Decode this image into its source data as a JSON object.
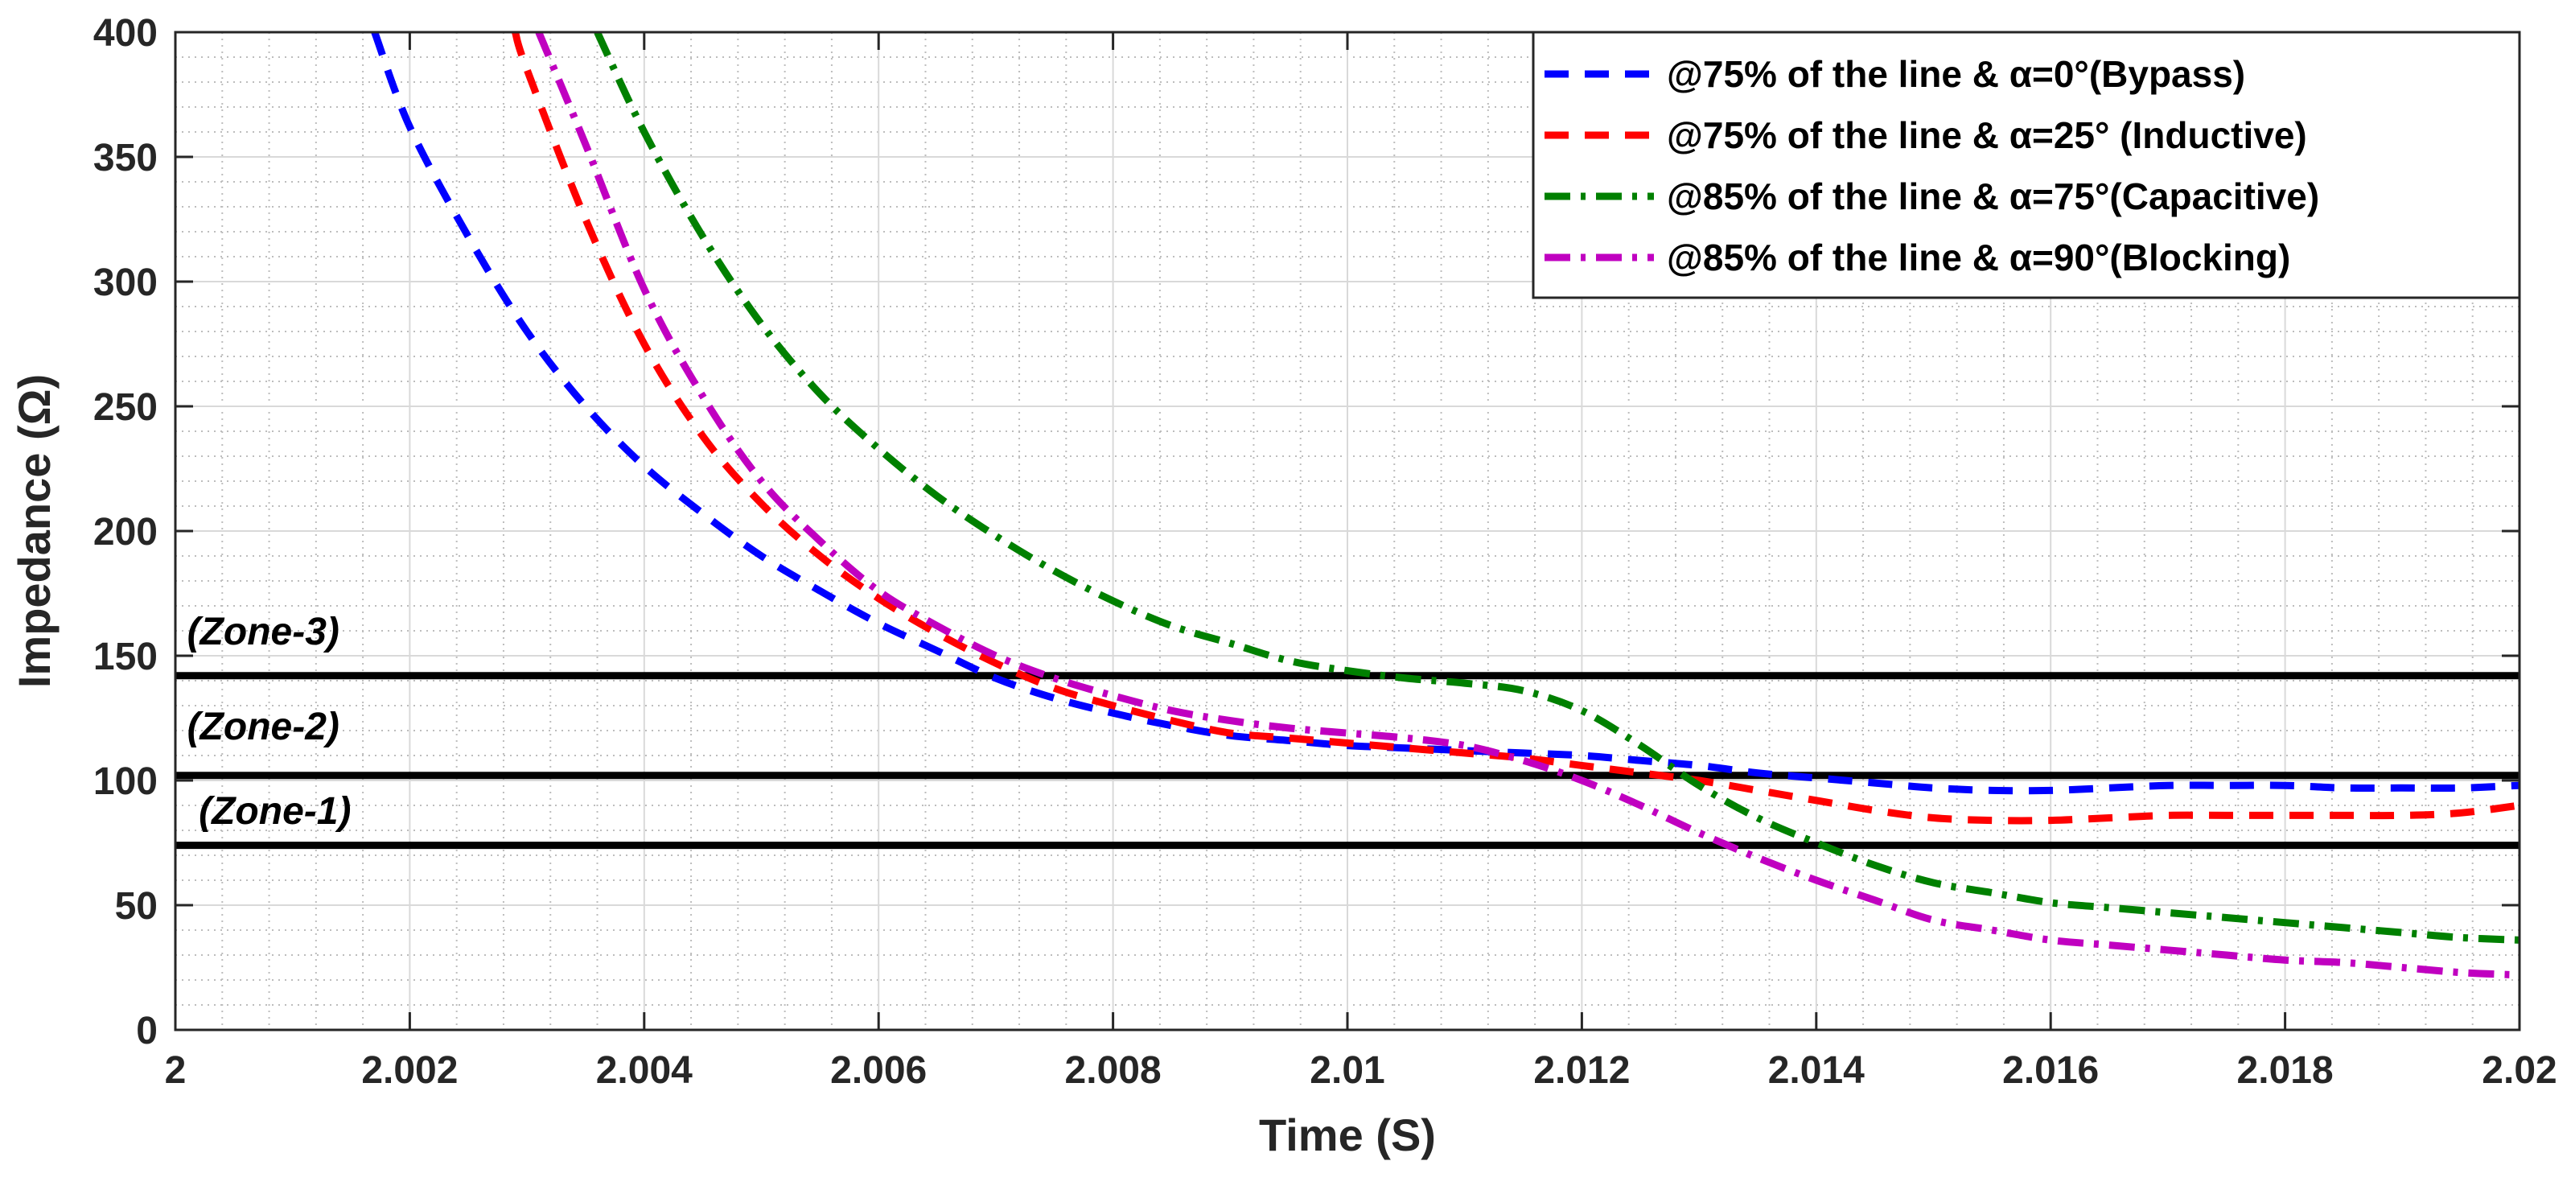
{
  "chart_data": {
    "type": "line",
    "title": "",
    "xlabel": "Time (S)",
    "ylabel": "Impedance (Ω)",
    "xlim": [
      2,
      2.02
    ],
    "ylim": [
      0,
      400
    ],
    "xticks": [
      2,
      2.002,
      2.004,
      2.006,
      2.008,
      2.01,
      2.012,
      2.014,
      2.016,
      2.018,
      2.02
    ],
    "xtick_labels": [
      "2",
      "2.002",
      "2.004",
      "2.006",
      "2.008",
      "2.01",
      "2.012",
      "2.014",
      "2.016",
      "2.018",
      "2.02"
    ],
    "yticks": [
      0,
      50,
      100,
      150,
      200,
      250,
      300,
      350,
      400
    ],
    "ytick_labels": [
      "0",
      "50",
      "100",
      "150",
      "200",
      "250",
      "300",
      "350",
      "400"
    ],
    "grid": true,
    "minor_grid": true,
    "legend_position": "top-right",
    "series": [
      {
        "name": "@75% of the line & α=0°(Bypass)",
        "color": "#0000ff",
        "style": "dashed",
        "x": [
          2.0017,
          2.002,
          2.0025,
          2.003,
          2.0035,
          2.004,
          2.0045,
          2.005,
          2.0055,
          2.006,
          2.0065,
          2.007,
          2.0075,
          2.008,
          2.0085,
          2.009,
          2.0095,
          2.01,
          2.0105,
          2.011,
          2.0115,
          2.012,
          2.0125,
          2.013,
          2.0135,
          2.014,
          2.0145,
          2.015,
          2.0155,
          2.016,
          2.0165,
          2.017,
          2.0175,
          2.018,
          2.0185,
          2.019,
          2.0195,
          2.02
        ],
        "y": [
          400,
          362,
          318,
          280,
          250,
          226,
          207,
          190,
          176,
          163,
          152,
          141,
          133,
          127,
          122,
          118,
          116,
          114,
          113,
          112,
          111,
          110,
          108,
          106,
          103,
          101,
          99,
          97,
          96,
          96,
          97,
          98,
          98,
          98,
          97,
          97,
          97,
          98
        ]
      },
      {
        "name": "@75% of the line & α=25° (Inductive)",
        "color": "#ff0000",
        "style": "dashed",
        "x": [
          2.0029,
          2.003,
          2.0035,
          2.004,
          2.0045,
          2.005,
          2.0055,
          2.006,
          2.0065,
          2.007,
          2.0075,
          2.008,
          2.0085,
          2.009,
          2.0095,
          2.01,
          2.0105,
          2.011,
          2.0115,
          2.012,
          2.0125,
          2.013,
          2.0135,
          2.014,
          2.0145,
          2.015,
          2.0155,
          2.016,
          2.0165,
          2.017,
          2.0175,
          2.018,
          2.0185,
          2.019,
          2.0195,
          2.02
        ],
        "y": [
          400,
          385,
          325,
          275,
          238,
          211,
          190,
          173,
          159,
          147,
          137,
          130,
          124,
          119,
          117,
          115,
          113,
          111,
          109,
          106,
          103,
          100,
          96,
          92,
          88,
          85,
          84,
          84,
          85,
          86,
          86,
          86,
          86,
          86,
          87,
          90
        ]
      },
      {
        "name": "@85% of the line & α=75°(Capacitive)",
        "color": "#008000",
        "style": "dashdot",
        "x": [
          2.0036,
          2.004,
          2.0045,
          2.005,
          2.0055,
          2.006,
          2.0065,
          2.007,
          2.0075,
          2.008,
          2.0085,
          2.009,
          2.0095,
          2.01,
          2.0105,
          2.011,
          2.0115,
          2.012,
          2.0125,
          2.013,
          2.0135,
          2.014,
          2.0145,
          2.015,
          2.0155,
          2.016,
          2.0165,
          2.017,
          2.0175,
          2.018,
          2.0185,
          2.019,
          2.0195,
          2.02
        ],
        "y": [
          400,
          360,
          318,
          283,
          255,
          233,
          214,
          198,
          184,
          172,
          162,
          155,
          148,
          144,
          141,
          139,
          136,
          128,
          114,
          98,
          85,
          75,
          66,
          59,
          55,
          51,
          49,
          47,
          45,
          43,
          41,
          39,
          37,
          36
        ]
      },
      {
        "name": "@85% of the line & α=90°(Blocking)",
        "color": "#c000c0",
        "style": "dashdot",
        "x": [
          2.0031,
          2.0035,
          2.004,
          2.0045,
          2.005,
          2.0055,
          2.006,
          2.0065,
          2.007,
          2.0075,
          2.008,
          2.0085,
          2.009,
          2.0095,
          2.01,
          2.0105,
          2.011,
          2.0115,
          2.012,
          2.0125,
          2.013,
          2.0135,
          2.014,
          2.0145,
          2.015,
          2.0155,
          2.016,
          2.0165,
          2.017,
          2.0175,
          2.018,
          2.0185,
          2.019,
          2.0195,
          2.02
        ],
        "y": [
          400,
          355,
          297,
          254,
          220,
          196,
          176,
          162,
          150,
          141,
          134,
          128,
          124,
          121,
          119,
          117,
          114,
          108,
          100,
          90,
          79,
          69,
          60,
          52,
          44,
          40,
          36,
          34,
          32,
          30,
          28,
          27,
          25,
          23,
          22
        ]
      }
    ],
    "reference_lines": [
      {
        "name": "Zone-3",
        "label": "(Zone-3)",
        "y": 142,
        "label_y": 160,
        "label_x": 2.0001
      },
      {
        "name": "Zone-2",
        "label": "(Zone-2)",
        "y": 102,
        "label_y": 122,
        "label_x": 2.0001
      },
      {
        "name": "Zone-1",
        "label": "(Zone-1)",
        "y": 74,
        "label_y": 88,
        "label_x": 2.0002
      }
    ]
  }
}
